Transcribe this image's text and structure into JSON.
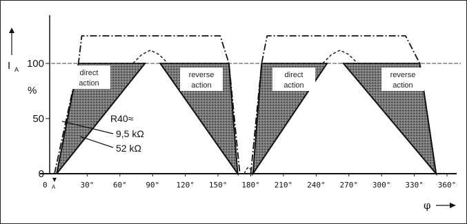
{
  "chart_data": {
    "type": "area",
    "title": "",
    "xlabel": "φ",
    "ylabel": "I",
    "ylabel_sub": "A",
    "yunit": "%",
    "xlim": [
      0,
      360
    ],
    "ylim": [
      0,
      130
    ],
    "x_ticks": [
      "30°",
      "60°",
      "90°",
      "120°",
      "150°",
      "180°",
      "210°",
      "240°",
      "270°",
      "300°",
      "330°",
      "360°"
    ],
    "x_tick_values": [
      30,
      60,
      90,
      120,
      150,
      180,
      210,
      240,
      270,
      300,
      330,
      360
    ],
    "y_ticks": [
      "0",
      "50",
      "100"
    ],
    "y_tick_values": [
      0,
      50,
      100
    ],
    "origin_label": "0",
    "marker_label": "A",
    "reference_level": 100,
    "series": [
      {
        "style": "dash-dot",
        "segments": [
          {
            "x": [
              0,
              22,
              25,
              152,
              160,
              170
            ],
            "y": [
              0,
              100,
              125,
              125,
              100,
              0
            ]
          },
          {
            "x": [
              180,
              190,
              195,
              322,
              335,
              350
            ],
            "y": [
              0,
              100,
              125,
              125,
              100,
              0
            ]
          }
        ]
      },
      {
        "style": "dashed",
        "segments": [
          {
            "x": [
              72,
              80,
              88,
              96,
              104
            ],
            "y": [
              100,
              108,
              112,
              108,
              100
            ]
          },
          {
            "x": [
              246,
              254,
              262,
              270,
              278
            ],
            "y": [
              100,
              108,
              112,
              108,
              100
            ]
          },
          {
            "x": [
              174,
              176,
              178,
              180,
              182
            ],
            "y": [
              0,
              4,
              6,
              4,
              0
            ]
          }
        ]
      }
    ],
    "regions": [
      {
        "x": [
          2,
          22,
          83
        ],
        "y": [
          0,
          100,
          100
        ]
      },
      {
        "x": [
          97,
          160,
          168
        ],
        "y": [
          100,
          100,
          0
        ]
      },
      {
        "x": [
          182,
          190,
          250
        ],
        "y": [
          0,
          100,
          100
        ]
      },
      {
        "x": [
          265,
          335,
          350
        ],
        "y": [
          100,
          100,
          0
        ]
      }
    ],
    "annotations": {
      "direct_action": "direct\naction",
      "reverse_action": "reverse\naction",
      "r40": "R40≈",
      "r_low": "9,5 kΩ",
      "r_high": "52 kΩ"
    },
    "grid": false,
    "legend": "none"
  }
}
